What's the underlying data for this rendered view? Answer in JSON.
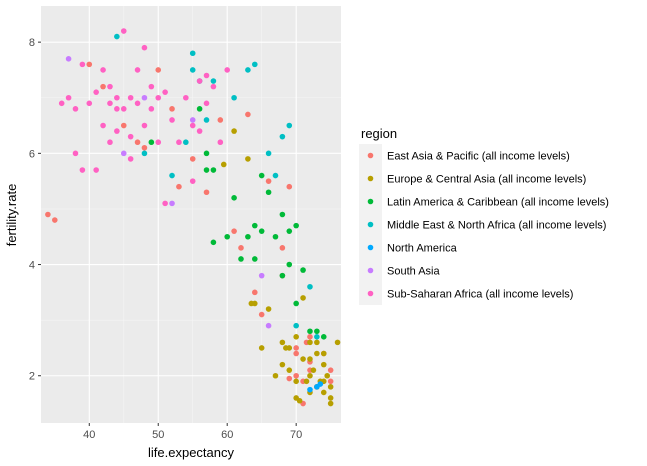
{
  "chart_data": {
    "type": "scatter",
    "title": "",
    "xlabel": "life.expectancy",
    "ylabel": "fertility.rate",
    "xlim": [
      33,
      76.5
    ],
    "ylim": [
      1.15,
      8.65
    ],
    "x_ticks": [
      40,
      50,
      60,
      70
    ],
    "y_ticks": [
      2,
      4,
      6,
      8
    ],
    "grid": true,
    "legend": {
      "title": "region",
      "position": "right"
    },
    "series": [
      {
        "name": "East Asia & Pacific (all income levels)",
        "color": "#F8766D",
        "points": [
          [
            34,
            4.9
          ],
          [
            35,
            4.8
          ],
          [
            40,
            7.6
          ],
          [
            42,
            7.2
          ],
          [
            45,
            6.5
          ],
          [
            47,
            6.2
          ],
          [
            48,
            6.1
          ],
          [
            50,
            7.5
          ],
          [
            52,
            6.8
          ],
          [
            53,
            5.4
          ],
          [
            55,
            5.9
          ],
          [
            57,
            5.3
          ],
          [
            59,
            6.6
          ],
          [
            61,
            4.6
          ],
          [
            62,
            4.3
          ],
          [
            63,
            6.7
          ],
          [
            64,
            3.5
          ],
          [
            65,
            3.1
          ],
          [
            66,
            5.5
          ],
          [
            68,
            3.8
          ],
          [
            69,
            5.4
          ],
          [
            70,
            2.0
          ],
          [
            70,
            2.5
          ],
          [
            71,
            1.9
          ],
          [
            71,
            1.5
          ],
          [
            72,
            2.7
          ],
          [
            72,
            2.1
          ],
          [
            73,
            1.8
          ],
          [
            74,
            2.4
          ],
          [
            75,
            2.1
          ],
          [
            75,
            1.9
          ],
          [
            68,
            4.3
          ],
          [
            70,
            2.4
          ],
          [
            69,
            1.95
          ],
          [
            71.5,
            2.6
          ],
          [
            72,
            2.25
          ]
        ]
      },
      {
        "name": "Europe & Central Asia (all income levels)",
        "color": "#B79F00",
        "points": [
          [
            61,
            6.4
          ],
          [
            63,
            5.9
          ],
          [
            64,
            3.3
          ],
          [
            65,
            2.5
          ],
          [
            66,
            3.2
          ],
          [
            67,
            2.0
          ],
          [
            68,
            2.6
          ],
          [
            68,
            2.2
          ],
          [
            69,
            2.5
          ],
          [
            69,
            2.1
          ],
          [
            70,
            2.7
          ],
          [
            70,
            1.9
          ],
          [
            70,
            1.6
          ],
          [
            71,
            2.3
          ],
          [
            71,
            3.4
          ],
          [
            72,
            2.6
          ],
          [
            72,
            2.3
          ],
          [
            72,
            2.0
          ],
          [
            72,
            1.7
          ],
          [
            73,
            1.8
          ],
          [
            73,
            2.4
          ],
          [
            73,
            2.6
          ],
          [
            74,
            2.4
          ],
          [
            74,
            2.2
          ],
          [
            74,
            1.9
          ],
          [
            74,
            1.7
          ],
          [
            75,
            1.8
          ],
          [
            75,
            1.6
          ],
          [
            75,
            1.5
          ],
          [
            76,
            2.6
          ],
          [
            59.5,
            5.8
          ],
          [
            63.5,
            3.3
          ],
          [
            68.5,
            2.5
          ],
          [
            71.5,
            1.9
          ],
          [
            72.5,
            2.1
          ],
          [
            73.5,
            1.9
          ],
          [
            74.5,
            2.0
          ],
          [
            70.5,
            1.55
          ]
        ]
      },
      {
        "name": "Latin America & Caribbean (all income levels)",
        "color": "#00BA38",
        "points": [
          [
            49,
            6.2
          ],
          [
            56,
            6.8
          ],
          [
            57,
            6.0
          ],
          [
            57,
            5.7
          ],
          [
            58,
            4.4
          ],
          [
            60,
            4.5
          ],
          [
            61,
            5.2
          ],
          [
            62,
            4.1
          ],
          [
            63,
            4.5
          ],
          [
            64,
            4.7
          ],
          [
            64,
            4.1
          ],
          [
            65,
            4.6
          ],
          [
            65,
            5.6
          ],
          [
            66,
            5.3
          ],
          [
            67,
            4.5
          ],
          [
            68,
            4.9
          ],
          [
            68,
            3.8
          ],
          [
            69,
            4.6
          ],
          [
            69,
            4.0
          ],
          [
            70,
            3.3
          ],
          [
            70,
            4.7
          ],
          [
            71,
            3.9
          ],
          [
            72,
            2.8
          ],
          [
            73,
            2.8
          ],
          [
            74,
            2.7
          ],
          [
            58,
            5.7
          ]
        ]
      },
      {
        "name": "Middle East & North Africa (all income levels)",
        "color": "#00BFC4",
        "points": [
          [
            44,
            8.1
          ],
          [
            48,
            6.0
          ],
          [
            52,
            5.6
          ],
          [
            54,
            6.2
          ],
          [
            55,
            7.5
          ],
          [
            56,
            7.3
          ],
          [
            57,
            6.6
          ],
          [
            58,
            7.3
          ],
          [
            61,
            7.0
          ],
          [
            63,
            7.5
          ],
          [
            64,
            7.6
          ],
          [
            66,
            6.0
          ],
          [
            67,
            5.6
          ],
          [
            68,
            6.3
          ],
          [
            69,
            6.5
          ],
          [
            70,
            2.9
          ],
          [
            72,
            3.6
          ],
          [
            73,
            2.7
          ],
          [
            55,
            7.8
          ]
        ]
      },
      {
        "name": "North America",
        "color": "#00A9FF",
        "points": [
          [
            72,
            1.75
          ],
          [
            73,
            1.8
          ],
          [
            73.5,
            1.85
          ]
        ]
      },
      {
        "name": "South Asia",
        "color": "#C77CFF",
        "points": [
          [
            37,
            7.7
          ],
          [
            45,
            6.0
          ],
          [
            48,
            7.0
          ],
          [
            52,
            5.1
          ],
          [
            55,
            6.6
          ],
          [
            65,
            3.8
          ],
          [
            66,
            2.9
          ]
        ]
      },
      {
        "name": "Sub-Saharan Africa (all income levels)",
        "color": "#FF61C3",
        "points": [
          [
            36,
            6.9
          ],
          [
            37,
            7.0
          ],
          [
            38,
            6.8
          ],
          [
            39,
            5.7
          ],
          [
            39,
            7.6
          ],
          [
            40,
            6.9
          ],
          [
            41,
            7.1
          ],
          [
            41,
            5.7
          ],
          [
            42,
            6.5
          ],
          [
            42,
            7.5
          ],
          [
            43,
            6.9
          ],
          [
            43,
            6.2
          ],
          [
            43,
            7.2
          ],
          [
            44,
            6.8
          ],
          [
            44,
            6.4
          ],
          [
            45,
            6.8
          ],
          [
            45,
            8.2
          ],
          [
            46,
            7.0
          ],
          [
            46,
            6.3
          ],
          [
            47,
            6.9
          ],
          [
            47,
            7.5
          ],
          [
            48,
            7.9
          ],
          [
            48,
            6.5
          ],
          [
            49,
            6.8
          ],
          [
            49,
            7.2
          ],
          [
            50,
            7.0
          ],
          [
            50,
            6.2
          ],
          [
            51,
            7.1
          ],
          [
            51,
            5.1
          ],
          [
            52,
            6.6
          ],
          [
            53,
            6.2
          ],
          [
            54,
            7.0
          ],
          [
            55,
            6.5
          ],
          [
            55,
            5.5
          ],
          [
            56,
            7.3
          ],
          [
            57,
            7.4
          ],
          [
            57,
            6.9
          ],
          [
            58,
            7.2
          ],
          [
            59,
            6.2
          ],
          [
            60,
            7.5
          ],
          [
            46,
            5.9
          ],
          [
            44,
            7.0
          ],
          [
            56,
            6.4
          ],
          [
            38,
            6.0
          ]
        ]
      }
    ]
  }
}
